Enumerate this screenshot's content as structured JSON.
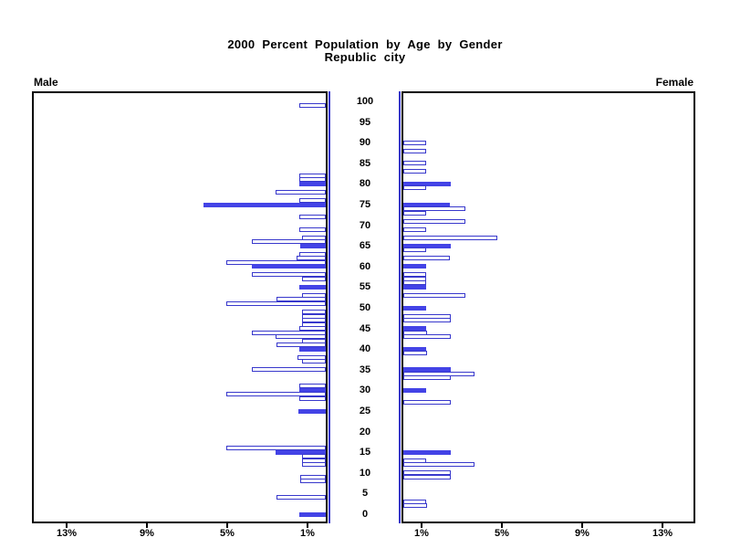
{
  "title": {
    "line1": "2000 Percent Population by Age by Gender",
    "line2": "Republic city"
  },
  "panels": {
    "male_label": "Male",
    "female_label": "Female"
  },
  "chart_data": {
    "type": "bar",
    "subtype": "population-pyramid",
    "title": "2000 Percent Population by Age by Gender",
    "subtitle": "Republic city",
    "unit": "percent of population",
    "grid": false,
    "age_axis": {
      "min": 0,
      "max": 100,
      "tick_interval": 5,
      "labels": [
        100,
        95,
        90,
        85,
        80,
        75,
        70,
        65,
        60,
        55,
        50,
        45,
        40,
        35,
        30,
        25,
        20,
        15,
        10,
        5,
        0
      ]
    },
    "x_axis": {
      "max_percent": 14.5,
      "ticks": [
        {
          "value": 1,
          "label": "1%"
        },
        {
          "value": 5,
          "label": "5%"
        },
        {
          "value": 9,
          "label": "9%"
        },
        {
          "value": 13,
          "label": "13%"
        }
      ]
    },
    "colors": {
      "bar_fill": "#4343e6",
      "bar_outline": "#3838cc",
      "axis_black": "#000000"
    },
    "series": [
      {
        "name": "Male",
        "side": "left",
        "points": [
          {
            "age": 99,
            "value": 1.3,
            "solid": false
          },
          {
            "age": 82,
            "value": 1.3,
            "solid": false
          },
          {
            "age": 81,
            "value": 1.3,
            "solid": false
          },
          {
            "age": 80,
            "value": 1.3,
            "solid": true
          },
          {
            "age": 78,
            "value": 2.5,
            "solid": false
          },
          {
            "age": 76,
            "value": 1.3,
            "solid": false
          },
          {
            "age": 75,
            "value": 6.1,
            "solid": true
          },
          {
            "age": 72,
            "value": 1.3,
            "solid": false
          },
          {
            "age": 69,
            "value": 1.3,
            "solid": false
          },
          {
            "age": 67,
            "value": 1.2,
            "solid": false
          },
          {
            "age": 66,
            "value": 3.7,
            "solid": false
          },
          {
            "age": 65,
            "value": 1.25,
            "solid": true
          },
          {
            "age": 63,
            "value": 1.3,
            "solid": false
          },
          {
            "age": 62,
            "value": 1.45,
            "solid": false
          },
          {
            "age": 61,
            "value": 4.95,
            "solid": false
          },
          {
            "age": 60,
            "value": 3.7,
            "solid": true
          },
          {
            "age": 58,
            "value": 3.7,
            "solid": false
          },
          {
            "age": 57,
            "value": 1.2,
            "solid": false
          },
          {
            "age": 55,
            "value": 1.3,
            "solid": true
          },
          {
            "age": 53,
            "value": 1.2,
            "solid": false
          },
          {
            "age": 52,
            "value": 2.45,
            "solid": false
          },
          {
            "age": 51,
            "value": 4.95,
            "solid": false
          },
          {
            "age": 49,
            "value": 1.2,
            "solid": false
          },
          {
            "age": 48,
            "value": 1.2,
            "solid": false
          },
          {
            "age": 47,
            "value": 1.2,
            "solid": false
          },
          {
            "age": 46,
            "value": 1.2,
            "solid": false
          },
          {
            "age": 45,
            "value": 1.3,
            "solid": false
          },
          {
            "age": 44,
            "value": 3.7,
            "solid": false
          },
          {
            "age": 43,
            "value": 2.5,
            "solid": false
          },
          {
            "age": 42,
            "value": 1.2,
            "solid": false
          },
          {
            "age": 41,
            "value": 2.45,
            "solid": false
          },
          {
            "age": 40,
            "value": 1.3,
            "solid": true
          },
          {
            "age": 38,
            "value": 1.4,
            "solid": false
          },
          {
            "age": 37,
            "value": 1.2,
            "solid": false
          },
          {
            "age": 35,
            "value": 3.7,
            "solid": false
          },
          {
            "age": 31,
            "value": 1.3,
            "solid": false
          },
          {
            "age": 30,
            "value": 1.3,
            "solid": true
          },
          {
            "age": 29,
            "value": 4.95,
            "solid": false
          },
          {
            "age": 28,
            "value": 1.3,
            "solid": false
          },
          {
            "age": 25,
            "value": 1.35,
            "solid": true
          },
          {
            "age": 16,
            "value": 4.95,
            "solid": false
          },
          {
            "age": 15,
            "value": 2.5,
            "solid": true
          },
          {
            "age": 14,
            "value": 1.2,
            "solid": false
          },
          {
            "age": 13,
            "value": 1.2,
            "solid": false
          },
          {
            "age": 12,
            "value": 1.2,
            "solid": false
          },
          {
            "age": 9,
            "value": 1.25,
            "solid": false
          },
          {
            "age": 8,
            "value": 1.25,
            "solid": false
          },
          {
            "age": 4,
            "value": 2.45,
            "solid": false
          },
          {
            "age": 0,
            "value": 1.3,
            "solid": true
          }
        ]
      },
      {
        "name": "Female",
        "side": "right",
        "points": [
          {
            "age": 90,
            "value": 1.15,
            "solid": false
          },
          {
            "age": 88,
            "value": 1.15,
            "solid": false
          },
          {
            "age": 85,
            "value": 1.15,
            "solid": false
          },
          {
            "age": 83,
            "value": 1.15,
            "solid": false
          },
          {
            "age": 80,
            "value": 2.35,
            "solid": true
          },
          {
            "age": 79,
            "value": 1.15,
            "solid": false
          },
          {
            "age": 75,
            "value": 2.3,
            "solid": true
          },
          {
            "age": 74,
            "value": 3.1,
            "solid": false
          },
          {
            "age": 73,
            "value": 1.15,
            "solid": false
          },
          {
            "age": 71,
            "value": 3.1,
            "solid": false
          },
          {
            "age": 69,
            "value": 1.15,
            "solid": false
          },
          {
            "age": 67,
            "value": 4.7,
            "solid": false
          },
          {
            "age": 65,
            "value": 2.35,
            "solid": true
          },
          {
            "age": 64,
            "value": 1.15,
            "solid": false
          },
          {
            "age": 62,
            "value": 2.3,
            "solid": false
          },
          {
            "age": 60,
            "value": 1.15,
            "solid": true
          },
          {
            "age": 58,
            "value": 1.15,
            "solid": false
          },
          {
            "age": 57,
            "value": 1.15,
            "solid": false
          },
          {
            "age": 56,
            "value": 1.15,
            "solid": false
          },
          {
            "age": 55,
            "value": 1.15,
            "solid": true
          },
          {
            "age": 53,
            "value": 3.1,
            "solid": false
          },
          {
            "age": 50,
            "value": 1.15,
            "solid": true
          },
          {
            "age": 48,
            "value": 2.35,
            "solid": false
          },
          {
            "age": 47,
            "value": 2.35,
            "solid": false
          },
          {
            "age": 45,
            "value": 1.15,
            "solid": true
          },
          {
            "age": 44,
            "value": 1.2,
            "solid": false
          },
          {
            "age": 43,
            "value": 2.35,
            "solid": false
          },
          {
            "age": 40,
            "value": 1.15,
            "solid": true
          },
          {
            "age": 39,
            "value": 1.2,
            "solid": false
          },
          {
            "age": 35,
            "value": 2.35,
            "solid": true
          },
          {
            "age": 34,
            "value": 3.55,
            "solid": false
          },
          {
            "age": 33,
            "value": 2.35,
            "solid": false
          },
          {
            "age": 30,
            "value": 1.15,
            "solid": true
          },
          {
            "age": 27,
            "value": 2.35,
            "solid": false
          },
          {
            "age": 15,
            "value": 2.35,
            "solid": true
          },
          {
            "age": 13,
            "value": 1.15,
            "solid": false
          },
          {
            "age": 12,
            "value": 3.55,
            "solid": false
          },
          {
            "age": 10,
            "value": 2.35,
            "solid": false
          },
          {
            "age": 9,
            "value": 2.35,
            "solid": false
          },
          {
            "age": 3,
            "value": 1.15,
            "solid": false
          },
          {
            "age": 2,
            "value": 1.2,
            "solid": false
          }
        ]
      }
    ]
  }
}
